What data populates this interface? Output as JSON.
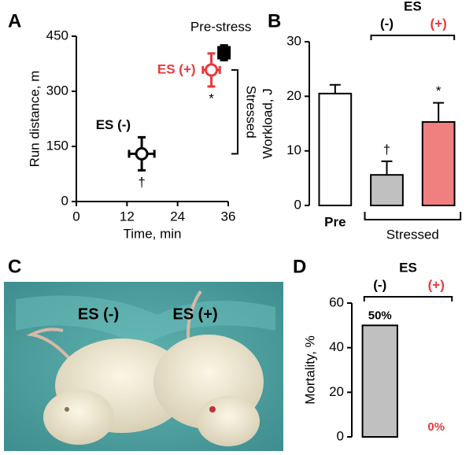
{
  "chart_data": [
    {
      "panel": "A",
      "type": "scatter",
      "xlabel": "Time, min",
      "ylabel": "Run distance, m",
      "xlim": [
        0,
        36
      ],
      "ylim": [
        0,
        450
      ],
      "xticks": [
        0,
        12,
        24,
        36
      ],
      "yticks": [
        0,
        150,
        300,
        450
      ],
      "points": [
        {
          "label": "Pre-stress",
          "x": 35,
          "y": 405,
          "xerr": 1,
          "yerr": 20,
          "color": "#000000",
          "marker": "square",
          "filled": true
        },
        {
          "label": "ES (+)",
          "x": 32,
          "y": 358,
          "xerr": 2,
          "yerr": 45,
          "color": "#e8393b",
          "marker": "circle",
          "filled": false,
          "note": "*"
        },
        {
          "label": "ES (-)",
          "x": 15.5,
          "y": 130,
          "xerr": 3,
          "yerr": 45,
          "color": "#000000",
          "marker": "circle",
          "filled": false,
          "note": "†"
        }
      ],
      "bracket_label": "Stressed"
    },
    {
      "panel": "B",
      "type": "bar",
      "ylabel": "Workload, J",
      "ylim": [
        0,
        30
      ],
      "yticks": [
        0,
        10,
        20,
        30
      ],
      "group_label": "ES",
      "bottom_group_label": "Stressed",
      "categories": [
        "Pre",
        "(-)",
        "(+)"
      ],
      "values": [
        20.5,
        5.6,
        15.3
      ],
      "errors": [
        1.6,
        2.5,
        3.5
      ],
      "colors": [
        "#ffffff",
        "#c0c0c0",
        "#f08080"
      ],
      "label_colors": [
        "#000000",
        "#000000",
        "#e8393b"
      ],
      "notes": [
        null,
        "†",
        "*"
      ]
    },
    {
      "panel": "D",
      "type": "bar",
      "ylabel": "Mortality, %",
      "ylim": [
        0,
        60
      ],
      "yticks": [
        0,
        20,
        40,
        60
      ],
      "group_label": "ES",
      "categories": [
        "(-)",
        "(+)"
      ],
      "values": [
        50,
        0
      ],
      "value_labels": [
        "50%",
        "0%"
      ],
      "colors": [
        "#c0c0c0",
        "#e8393b"
      ],
      "label_colors": [
        "#000000",
        "#e8393b"
      ]
    }
  ],
  "photo": {
    "panel": "C",
    "labels": [
      "ES (-)",
      "ES (+)"
    ]
  }
}
